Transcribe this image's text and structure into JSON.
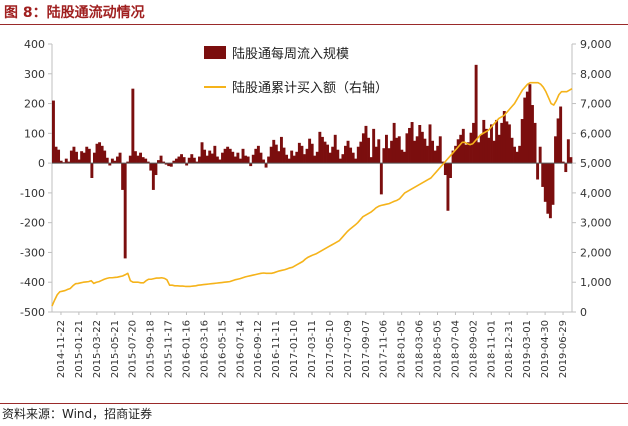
{
  "figure": {
    "title": "图 8：陆股通流动情况",
    "source": "资料来源：Wind，招商证券"
  },
  "chart_data": {
    "type": "bar+line",
    "colors": {
      "bar": "#7b0e0e",
      "line": "#f5b31a",
      "axis": "#bfbfbf"
    },
    "legend_position": "top-center",
    "grid": false,
    "y_left": {
      "min": -500,
      "max": 400,
      "ticks": [
        -500,
        -400,
        -300,
        -200,
        -100,
        0,
        100,
        200,
        300,
        400
      ],
      "tick_labels": [
        "-500",
        "-400",
        "-300",
        "-200",
        "-100",
        "0",
        "100",
        "200",
        "300",
        "400"
      ]
    },
    "y_right": {
      "min": 0,
      "max": 9000,
      "ticks": [
        0,
        1000,
        2000,
        3000,
        4000,
        5000,
        6000,
        7000,
        8000,
        9000
      ],
      "tick_labels": [
        "0",
        "1,000",
        "2,000",
        "3,000",
        "4,000",
        "5,000",
        "6,000",
        "7,000",
        "8,000",
        "9,000"
      ]
    },
    "x_tick_labels": [
      "2014-11-22",
      "2015-01-21",
      "2015-03-22",
      "2015-05-21",
      "2015-07-20",
      "2015-09-18",
      "2015-11-17",
      "2016-01-16",
      "2016-03-16",
      "2016-05-15",
      "2016-07-14",
      "2016-09-12",
      "2016-11-11",
      "2017-01-10",
      "2017-03-11",
      "2017-05-10",
      "2017-07-09",
      "2017-09-07",
      "2017-11-06",
      "2018-01-05",
      "2018-03-06",
      "2018-05-05",
      "2018-07-04",
      "2018-09-02",
      "2018-11-01",
      "2018-12-31",
      "2019-03-01",
      "2019-04-30",
      "2019-06-29"
    ],
    "series": [
      {
        "name": "陆股通每周流入规模",
        "type": "bar",
        "axis": "left",
        "values": [
          210,
          55,
          45,
          8,
          3,
          15,
          5,
          42,
          55,
          38,
          12,
          40,
          35,
          55,
          48,
          -50,
          35,
          65,
          70,
          58,
          42,
          18,
          -8,
          15,
          8,
          22,
          35,
          -90,
          -320,
          5,
          25,
          250,
          40,
          25,
          35,
          20,
          15,
          5,
          -25,
          -90,
          -40,
          10,
          25,
          5,
          -5,
          -10,
          -12,
          8,
          15,
          22,
          30,
          20,
          -8,
          18,
          30,
          18,
          5,
          22,
          70,
          45,
          25,
          42,
          32,
          58,
          22,
          12,
          35,
          48,
          55,
          48,
          38,
          22,
          35,
          15,
          48,
          25,
          22,
          -10,
          28,
          48,
          58,
          35,
          12,
          -15,
          22,
          55,
          78,
          62,
          40,
          88,
          52,
          28,
          15,
          42,
          25,
          38,
          68,
          58,
          30,
          48,
          82,
          65,
          25,
          38,
          105,
          88,
          72,
          62,
          35,
          55,
          95,
          45,
          15,
          30,
          58,
          75,
          52,
          35,
          15,
          55,
          72,
          100,
          125,
          85,
          20,
          115,
          55,
          80,
          -105,
          50,
          95,
          50,
          75,
          135,
          85,
          90,
          45,
          38,
          100,
          118,
          138,
          75,
          90,
          128,
          105,
          82,
          58,
          130,
          75,
          42,
          58,
          90,
          5,
          -40,
          -160,
          -50,
          42,
          58,
          80,
          95,
          115,
          62,
          70,
          102,
          135,
          330,
          70,
          95,
          145,
          115,
          85,
          130,
          75,
          145,
          95,
          135,
          175,
          140,
          130,
          85,
          55,
          38,
          58,
          148,
          220,
          240,
          265,
          195,
          135,
          -55,
          55,
          -80,
          -130,
          -170,
          -185,
          -140,
          90,
          150,
          190,
          5,
          -30,
          80,
          20
        ]
      },
      {
        "name": "陆股通累计买入额（右轴）",
        "type": "line",
        "axis": "right",
        "values": [
          200,
          400,
          580,
          680,
          700,
          720,
          760,
          790,
          880,
          950,
          960,
          980,
          1000,
          1010,
          1020,
          1050,
          960,
          1000,
          1020,
          1060,
          1100,
          1130,
          1150,
          1150,
          1160,
          1170,
          1190,
          1210,
          1250,
          1300,
          1050,
          1000,
          1000,
          1000,
          980,
          980,
          1050,
          1100,
          1100,
          1120,
          1140,
          1140,
          1150,
          1130,
          1080,
          900,
          900,
          880,
          880,
          870,
          870,
          860,
          860,
          860,
          870,
          880,
          900,
          910,
          920,
          930,
          940,
          950,
          960,
          970,
          980,
          990,
          1000,
          1010,
          1020,
          1050,
          1080,
          1100,
          1120,
          1150,
          1180,
          1200,
          1220,
          1240,
          1260,
          1280,
          1300,
          1310,
          1300,
          1300,
          1300,
          1320,
          1350,
          1380,
          1400,
          1420,
          1450,
          1480,
          1500,
          1550,
          1600,
          1650,
          1700,
          1780,
          1840,
          1880,
          1920,
          1950,
          2000,
          2050,
          2100,
          2150,
          2200,
          2250,
          2300,
          2350,
          2400,
          2500,
          2600,
          2700,
          2780,
          2850,
          2920,
          3000,
          3100,
          3200,
          3250,
          3300,
          3350,
          3420,
          3500,
          3550,
          3580,
          3600,
          3620,
          3640,
          3680,
          3720,
          3750,
          3800,
          3900,
          4000,
          4050,
          4100,
          4150,
          4200,
          4250,
          4300,
          4350,
          4400,
          4450,
          4500,
          4600,
          4700,
          4800,
          4900,
          5000,
          5100,
          5200,
          5300,
          5400,
          5500,
          5600,
          5700,
          5700,
          5650,
          5620,
          5650,
          5750,
          5850,
          5950,
          6000,
          6050,
          6100,
          6200,
          6300,
          6400,
          6500,
          6550,
          6600,
          6700,
          6800,
          6900,
          7000,
          7150,
          7300,
          7450,
          7550,
          7650,
          7700,
          7700,
          7700,
          7700,
          7650,
          7550,
          7400,
          7200,
          7000,
          6950,
          7100,
          7300,
          7400,
          7400,
          7400,
          7450,
          7500
        ]
      }
    ]
  }
}
